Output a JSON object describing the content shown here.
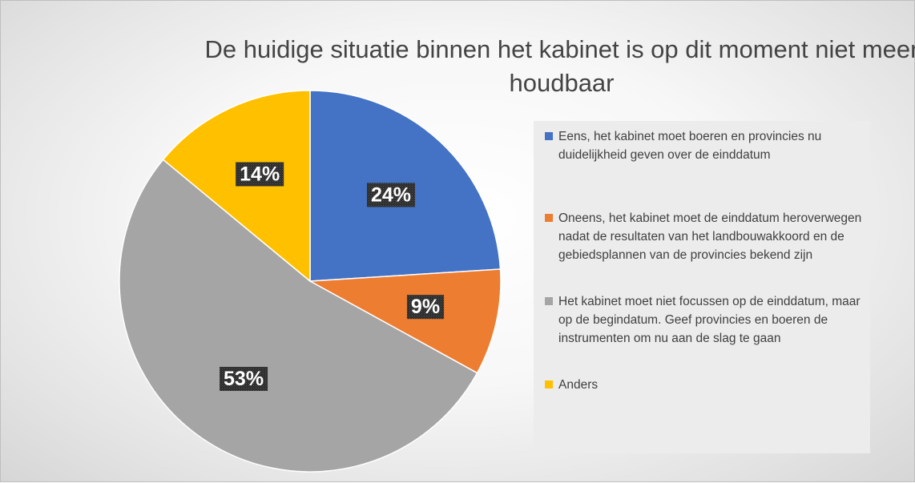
{
  "chart_data": {
    "type": "pie",
    "title": "De huidige situatie binnen het kabinet is op dit moment niet meer houdbaar",
    "slices": [
      {
        "label": "Eens, het kabinet moet boeren en provincies nu duidelijkheid geven over de einddatum",
        "value": 24,
        "display": "24%",
        "color": "#4472C4"
      },
      {
        "label": "Oneens, het kabinet moet de einddatum heroverwegen nadat de resultaten van het landbouwakkoord en de gebiedsplannen van de provincies bekend zijn",
        "value": 9,
        "display": "9%",
        "color": "#ED7D31"
      },
      {
        "label": "Het kabinet moet niet focussen op de einddatum, maar op de begindatum. Geef provincies en boeren de instrumenten om nu aan de slag te gaan",
        "value": 53,
        "display": "53%",
        "color": "#A5A5A5"
      },
      {
        "label": "Anders",
        "value": 14,
        "display": "14%",
        "color": "#FFC000"
      }
    ],
    "legend_position": "right",
    "start_angle": "12 o'clock, clockwise"
  }
}
